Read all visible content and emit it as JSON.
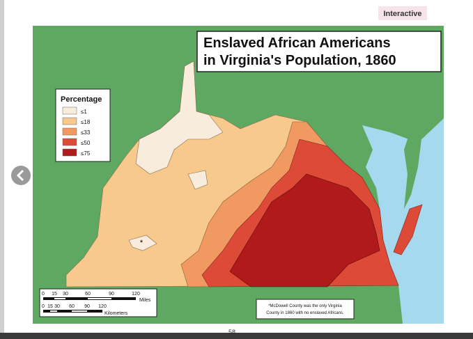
{
  "badge": "Interactive",
  "map": {
    "title_lines": [
      "Enslaved African Americans",
      "in Virginia's Population, 1860"
    ],
    "legend": {
      "title": "Percentage",
      "items": [
        "≤1",
        "≤18",
        "≤33",
        "≤50",
        "≤75"
      ]
    },
    "marker": "*",
    "scale": {
      "miles_ticks": [
        "0",
        "15",
        "30",
        "60",
        "90",
        "120"
      ],
      "miles_unit": "Miles",
      "km_ticks": [
        "0",
        "15",
        "30",
        "60",
        "90",
        "120"
      ],
      "km_unit": "Kilometers"
    },
    "note_lines": [
      "*McDowell County was the only Virginia",
      "County in 1860 with no enslaved Africans."
    ]
  },
  "page_number": "58"
}
